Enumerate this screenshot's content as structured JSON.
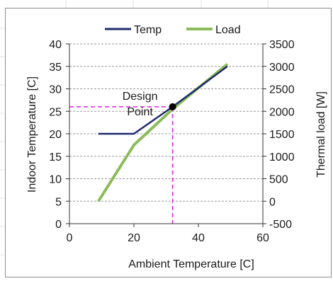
{
  "chart_data": {
    "type": "line",
    "title": "",
    "xlabel": "Ambient Temperature  [C]",
    "ylabel": "Indoor Temperature  [C]",
    "y2label": "Thermal load [W]",
    "xlim": [
      0,
      60
    ],
    "ylim": [
      0,
      40
    ],
    "y2lim": [
      -500,
      3500
    ],
    "x_ticks": [
      0,
      20,
      40,
      60
    ],
    "y_ticks": [
      0,
      5,
      10,
      15,
      20,
      25,
      30,
      35,
      40
    ],
    "y2_ticks": [
      -500,
      0,
      500,
      1000,
      1500,
      2000,
      2500,
      3000,
      3500
    ],
    "grid": true,
    "legend": "top",
    "series": [
      {
        "name": "Temp",
        "axis": "left",
        "color": "#1f2a6b",
        "x": [
          9,
          20,
          32,
          49
        ],
        "y": [
          20,
          20,
          26,
          35
        ]
      },
      {
        "name": "Load",
        "axis": "right",
        "color": "#8dbb5a",
        "x": [
          9,
          20,
          32,
          49
        ],
        "y": [
          0,
          1250,
          2050,
          3050
        ]
      }
    ],
    "annotations": [
      {
        "text_lines": [
          "Design",
          "Point"
        ],
        "x": 32,
        "y": 26,
        "guide_color": "#e020e0"
      }
    ]
  }
}
